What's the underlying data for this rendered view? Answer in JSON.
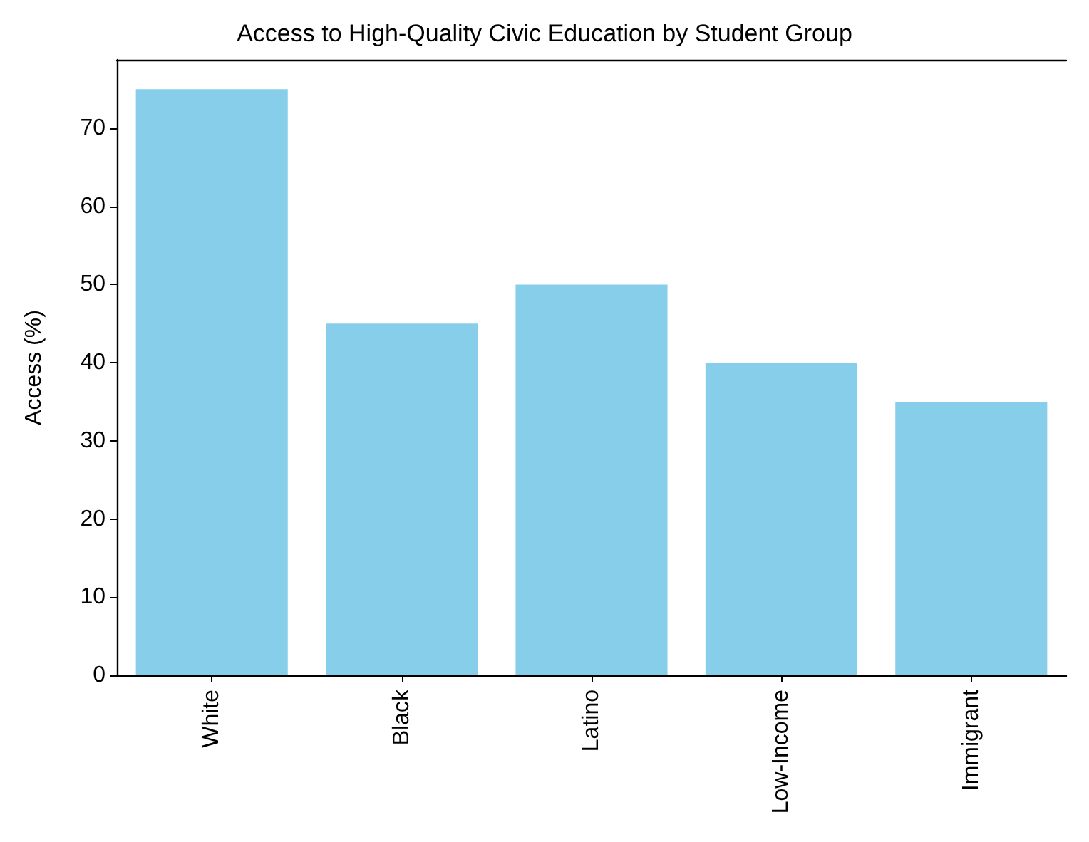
{
  "chart_data": {
    "type": "bar",
    "title": "Access to High-Quality Civic Education by Student Group",
    "ylabel": "Access (%)",
    "categories": [
      "White",
      "Black",
      "Latino",
      "Low-Income",
      "Immigrant"
    ],
    "values": [
      75,
      45,
      50,
      40,
      35
    ],
    "color": "#87ceeb",
    "ylim": [
      0,
      78.75
    ],
    "yticks": [
      0,
      10,
      20,
      30,
      40,
      50,
      60,
      70
    ],
    "grid": false
  }
}
